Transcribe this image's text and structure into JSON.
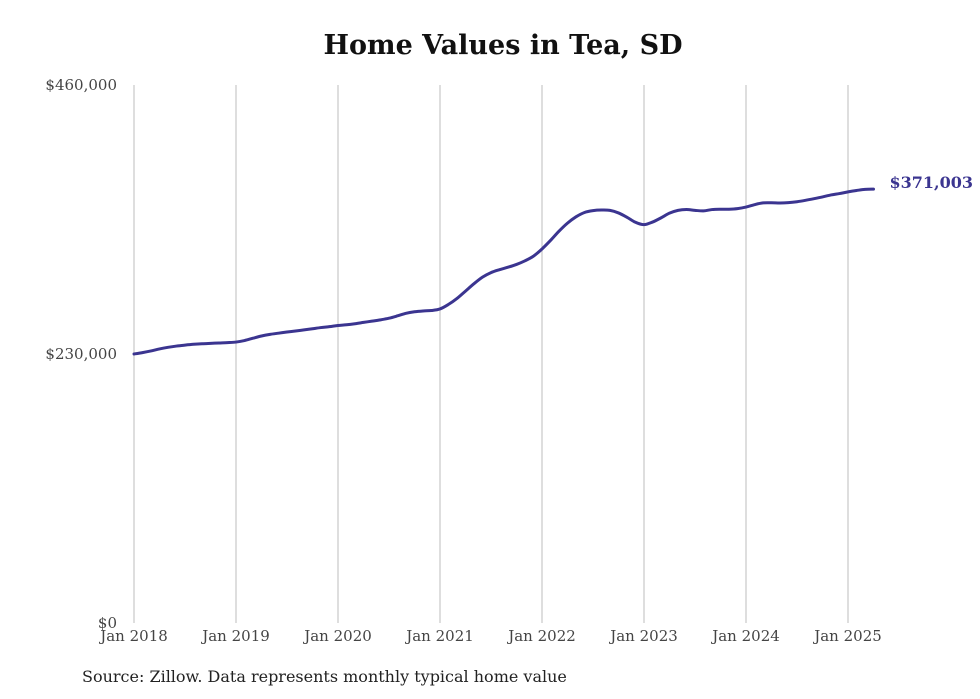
{
  "chart_data": {
    "type": "line",
    "title": "Home Values in Tea, SD",
    "xlabel": "",
    "ylabel": "",
    "ylim": [
      0,
      460000
    ],
    "y_ticks": [
      {
        "value": 0,
        "label": "$0"
      },
      {
        "value": 230000,
        "label": "$230,000"
      },
      {
        "value": 460000,
        "label": "$460,000"
      }
    ],
    "x_ticks": [
      {
        "value": "2018-01",
        "label": "Jan 2018"
      },
      {
        "value": "2019-01",
        "label": "Jan 2019"
      },
      {
        "value": "2020-01",
        "label": "Jan 2020"
      },
      {
        "value": "2021-01",
        "label": "Jan 2021"
      },
      {
        "value": "2022-01",
        "label": "Jan 2022"
      },
      {
        "value": "2023-01",
        "label": "Jan 2023"
      },
      {
        "value": "2024-01",
        "label": "Jan 2024"
      },
      {
        "value": "2025-01",
        "label": "Jan 2025"
      }
    ],
    "grid": {
      "vertical": true,
      "horizontal": false
    },
    "line_color": "#3b3590",
    "end_label": "$371,003",
    "series": [
      {
        "x": [
          "2018-01",
          "2018-02",
          "2018-03",
          "2018-04",
          "2018-05",
          "2018-06",
          "2018-07",
          "2018-08",
          "2018-09",
          "2018-10",
          "2018-11",
          "2018-12",
          "2019-01",
          "2019-02",
          "2019-03",
          "2019-04",
          "2019-05",
          "2019-06",
          "2019-07",
          "2019-08",
          "2019-09",
          "2019-10",
          "2019-11",
          "2019-12",
          "2020-01",
          "2020-02",
          "2020-03",
          "2020-04",
          "2020-05",
          "2020-06",
          "2020-07",
          "2020-08",
          "2020-09",
          "2020-10",
          "2020-11",
          "2020-12",
          "2021-01",
          "2021-02",
          "2021-03",
          "2021-04",
          "2021-05",
          "2021-06",
          "2021-07",
          "2021-08",
          "2021-09",
          "2021-10",
          "2021-11",
          "2021-12",
          "2022-01",
          "2022-02",
          "2022-03",
          "2022-04",
          "2022-05",
          "2022-06",
          "2022-07",
          "2022-08",
          "2022-09",
          "2022-10",
          "2022-11",
          "2022-12",
          "2023-01",
          "2023-02",
          "2023-03",
          "2023-04",
          "2023-05",
          "2023-06",
          "2023-07",
          "2023-08",
          "2023-09",
          "2023-10",
          "2023-11",
          "2023-12",
          "2024-01",
          "2024-02",
          "2024-03",
          "2024-04",
          "2024-05",
          "2024-06",
          "2024-07",
          "2024-08",
          "2024-09",
          "2024-10",
          "2024-11",
          "2024-12",
          "2025-01",
          "2025-02",
          "2025-03",
          "2025-04"
        ],
        "values": [
          230000,
          231200,
          232600,
          234300,
          235700,
          236800,
          237600,
          238300,
          238800,
          239100,
          239400,
          239700,
          240200,
          241500,
          243500,
          245400,
          246800,
          247800,
          248800,
          249700,
          250600,
          251600,
          252600,
          253400,
          254400,
          255000,
          255900,
          257000,
          258100,
          259200,
          260600,
          262600,
          264800,
          266100,
          266800,
          267200,
          268500,
          272400,
          277500,
          283800,
          290100,
          295700,
          299600,
          302100,
          304200,
          306600,
          309700,
          313700,
          319800,
          327100,
          335000,
          341900,
          347300,
          351000,
          352600,
          353100,
          352800,
          350600,
          346900,
          342600,
          340600,
          342800,
          346400,
          350400,
          352800,
          353500,
          352800,
          352400,
          353500,
          353800,
          353800,
          354300,
          355600,
          357700,
          359200,
          359300,
          359100,
          359400,
          360200,
          361400,
          362800,
          364300,
          366000,
          367200,
          368600,
          369800,
          370800,
          371003
        ]
      }
    ]
  },
  "source_note": "Source: Zillow. Data represents monthly typical home value"
}
